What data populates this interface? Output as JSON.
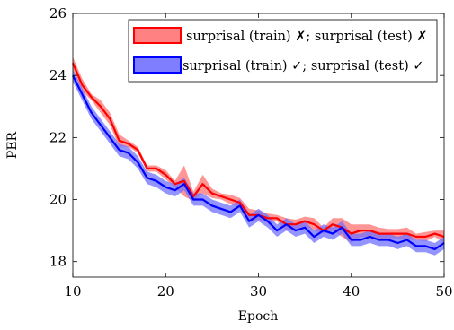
{
  "chart_data": {
    "type": "line",
    "title": "",
    "xlabel": "Epoch",
    "ylabel": "PER",
    "xlim": [
      10,
      50
    ],
    "ylim": [
      17.5,
      26
    ],
    "x_ticks": [
      "10",
      "20",
      "30",
      "40",
      "50"
    ],
    "y_ticks": [
      "18",
      "20",
      "22",
      "24",
      "26"
    ],
    "legend_position": "top-right",
    "grid": false,
    "x": [
      10,
      11,
      12,
      13,
      14,
      15,
      16,
      17,
      18,
      19,
      20,
      21,
      22,
      23,
      24,
      25,
      26,
      27,
      28,
      29,
      30,
      31,
      32,
      33,
      34,
      35,
      36,
      37,
      38,
      39,
      40,
      41,
      42,
      43,
      44,
      45,
      46,
      47,
      48,
      49,
      50
    ],
    "series": [
      {
        "name": "surprisal (train) ✗; surprisal (test) ✗",
        "color": "#ff0000",
        "fill": "#ff7373",
        "values": [
          24.4,
          23.7,
          23.3,
          23.0,
          22.6,
          21.9,
          21.8,
          21.6,
          21.0,
          21.0,
          20.8,
          20.5,
          20.6,
          20.1,
          20.5,
          20.2,
          20.1,
          20.0,
          19.9,
          19.5,
          19.5,
          19.4,
          19.4,
          19.2,
          19.2,
          19.3,
          19.2,
          19.0,
          19.2,
          19.1,
          18.9,
          19.0,
          19.0,
          18.9,
          18.9,
          18.9,
          18.9,
          18.8,
          18.8,
          18.9,
          18.8
        ],
        "band": [
          0.2,
          0.2,
          0.1,
          0.2,
          0.2,
          0.2,
          0.1,
          0.1,
          0.1,
          0.1,
          0.15,
          0.1,
          0.5,
          0.15,
          0.3,
          0.15,
          0.1,
          0.15,
          0.15,
          0.2,
          0.15,
          0.15,
          0.1,
          0.2,
          0.15,
          0.15,
          0.2,
          0.1,
          0.2,
          0.3,
          0.3,
          0.2,
          0.2,
          0.2,
          0.15,
          0.15,
          0.2,
          0.1,
          0.15,
          0.1,
          0.2
        ]
      },
      {
        "name": "surprisal (train) ✓; surprisal (test) ✓",
        "color": "#0000ff",
        "fill": "#7070ff",
        "values": [
          24.0,
          23.4,
          22.8,
          22.4,
          22.0,
          21.6,
          21.5,
          21.2,
          20.7,
          20.6,
          20.4,
          20.3,
          20.5,
          20.0,
          20.0,
          19.8,
          19.7,
          19.6,
          19.8,
          19.3,
          19.5,
          19.3,
          19.0,
          19.2,
          19.0,
          19.1,
          18.8,
          19.0,
          18.9,
          19.1,
          18.7,
          18.7,
          18.8,
          18.7,
          18.7,
          18.6,
          18.7,
          18.5,
          18.5,
          18.4,
          18.6
        ]
      }
    ]
  }
}
